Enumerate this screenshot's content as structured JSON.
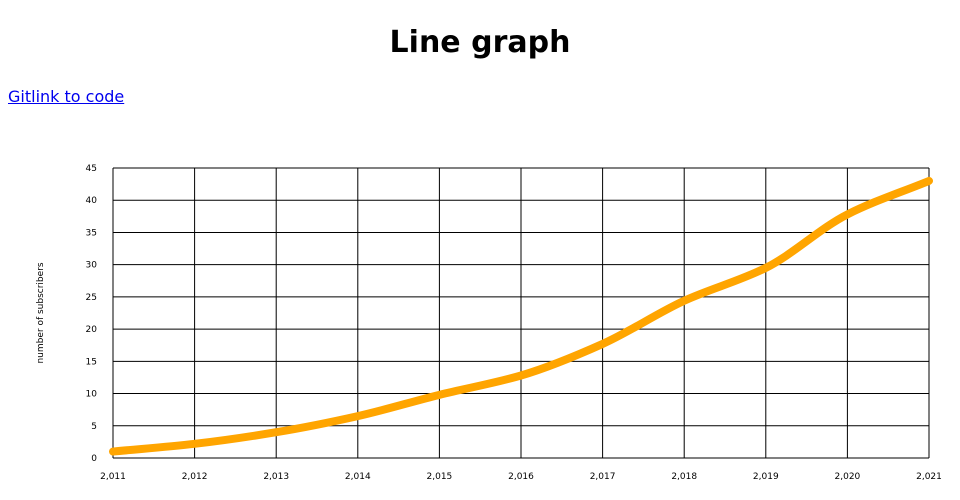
{
  "page": {
    "title": "Line graph",
    "link_text": "Gitlink to code"
  },
  "chart_data": {
    "type": "line",
    "title": "",
    "xlabel": "",
    "ylabel": "number of subscribers",
    "x_tick_labels": [
      "2,011",
      "2,012",
      "2,013",
      "2,014",
      "2,015",
      "2,016",
      "2,017",
      "2,018",
      "2,019",
      "2,020",
      "2,021"
    ],
    "y_tick_labels": [
      "0",
      "5",
      "10",
      "15",
      "20",
      "25",
      "30",
      "35",
      "40",
      "45"
    ],
    "xlim": [
      2011,
      2021
    ],
    "ylim": [
      0,
      45
    ],
    "grid": true,
    "legend": "none",
    "series": [
      {
        "color": "#ffa500",
        "x": [
          2011,
          2012,
          2013,
          2014,
          2015,
          2016,
          2017,
          2018,
          2019,
          2020,
          2021
        ],
        "y": [
          1,
          2.2,
          4,
          6.5,
          9.8,
          12.8,
          17.7,
          24.4,
          29.5,
          37.8,
          43
        ]
      }
    ]
  }
}
